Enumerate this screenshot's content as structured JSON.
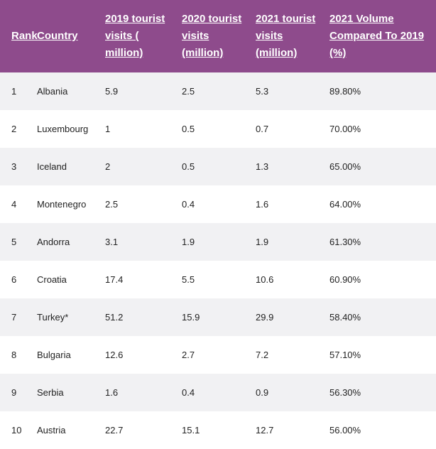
{
  "table": {
    "headers": [
      "Rank",
      "Country",
      "2019 tourist visits ( million)",
      "2020 tourist visits (million)",
      "2021 tourist visits (million)",
      "2021 Volume Compared To 2019 (%)"
    ],
    "rows": [
      [
        "1",
        "Albania",
        "5.9",
        "2.5",
        "5.3",
        "89.80%"
      ],
      [
        "2",
        "Luxembourg",
        "1",
        "0.5",
        "0.7",
        "70.00%"
      ],
      [
        "3",
        "Iceland",
        "2",
        "0.5",
        "1.3",
        "65.00%"
      ],
      [
        "4",
        "Montenegro",
        "2.5",
        "0.4",
        "1.6",
        "64.00%"
      ],
      [
        "5",
        "Andorra",
        "3.1",
        "1.9",
        "1.9",
        "61.30%"
      ],
      [
        "6",
        "Croatia",
        "17.4",
        "5.5",
        "10.6",
        "60.90%"
      ],
      [
        "7",
        "Turkey*",
        "51.2",
        "15.9",
        "29.9",
        "58.40%"
      ],
      [
        "8",
        "Bulgaria",
        "12.6",
        "2.7",
        "7.2",
        "57.10%"
      ],
      [
        "9",
        "Serbia",
        "1.6",
        "0.4",
        "0.9",
        "56.30%"
      ],
      [
        "10",
        "Austria",
        "22.7",
        "15.1",
        "12.7",
        "56.00%"
      ]
    ]
  },
  "colors": {
    "header_bg": "#8e4b8c",
    "header_text": "#ffffff",
    "row_alt_bg": "#f1f1f3"
  }
}
